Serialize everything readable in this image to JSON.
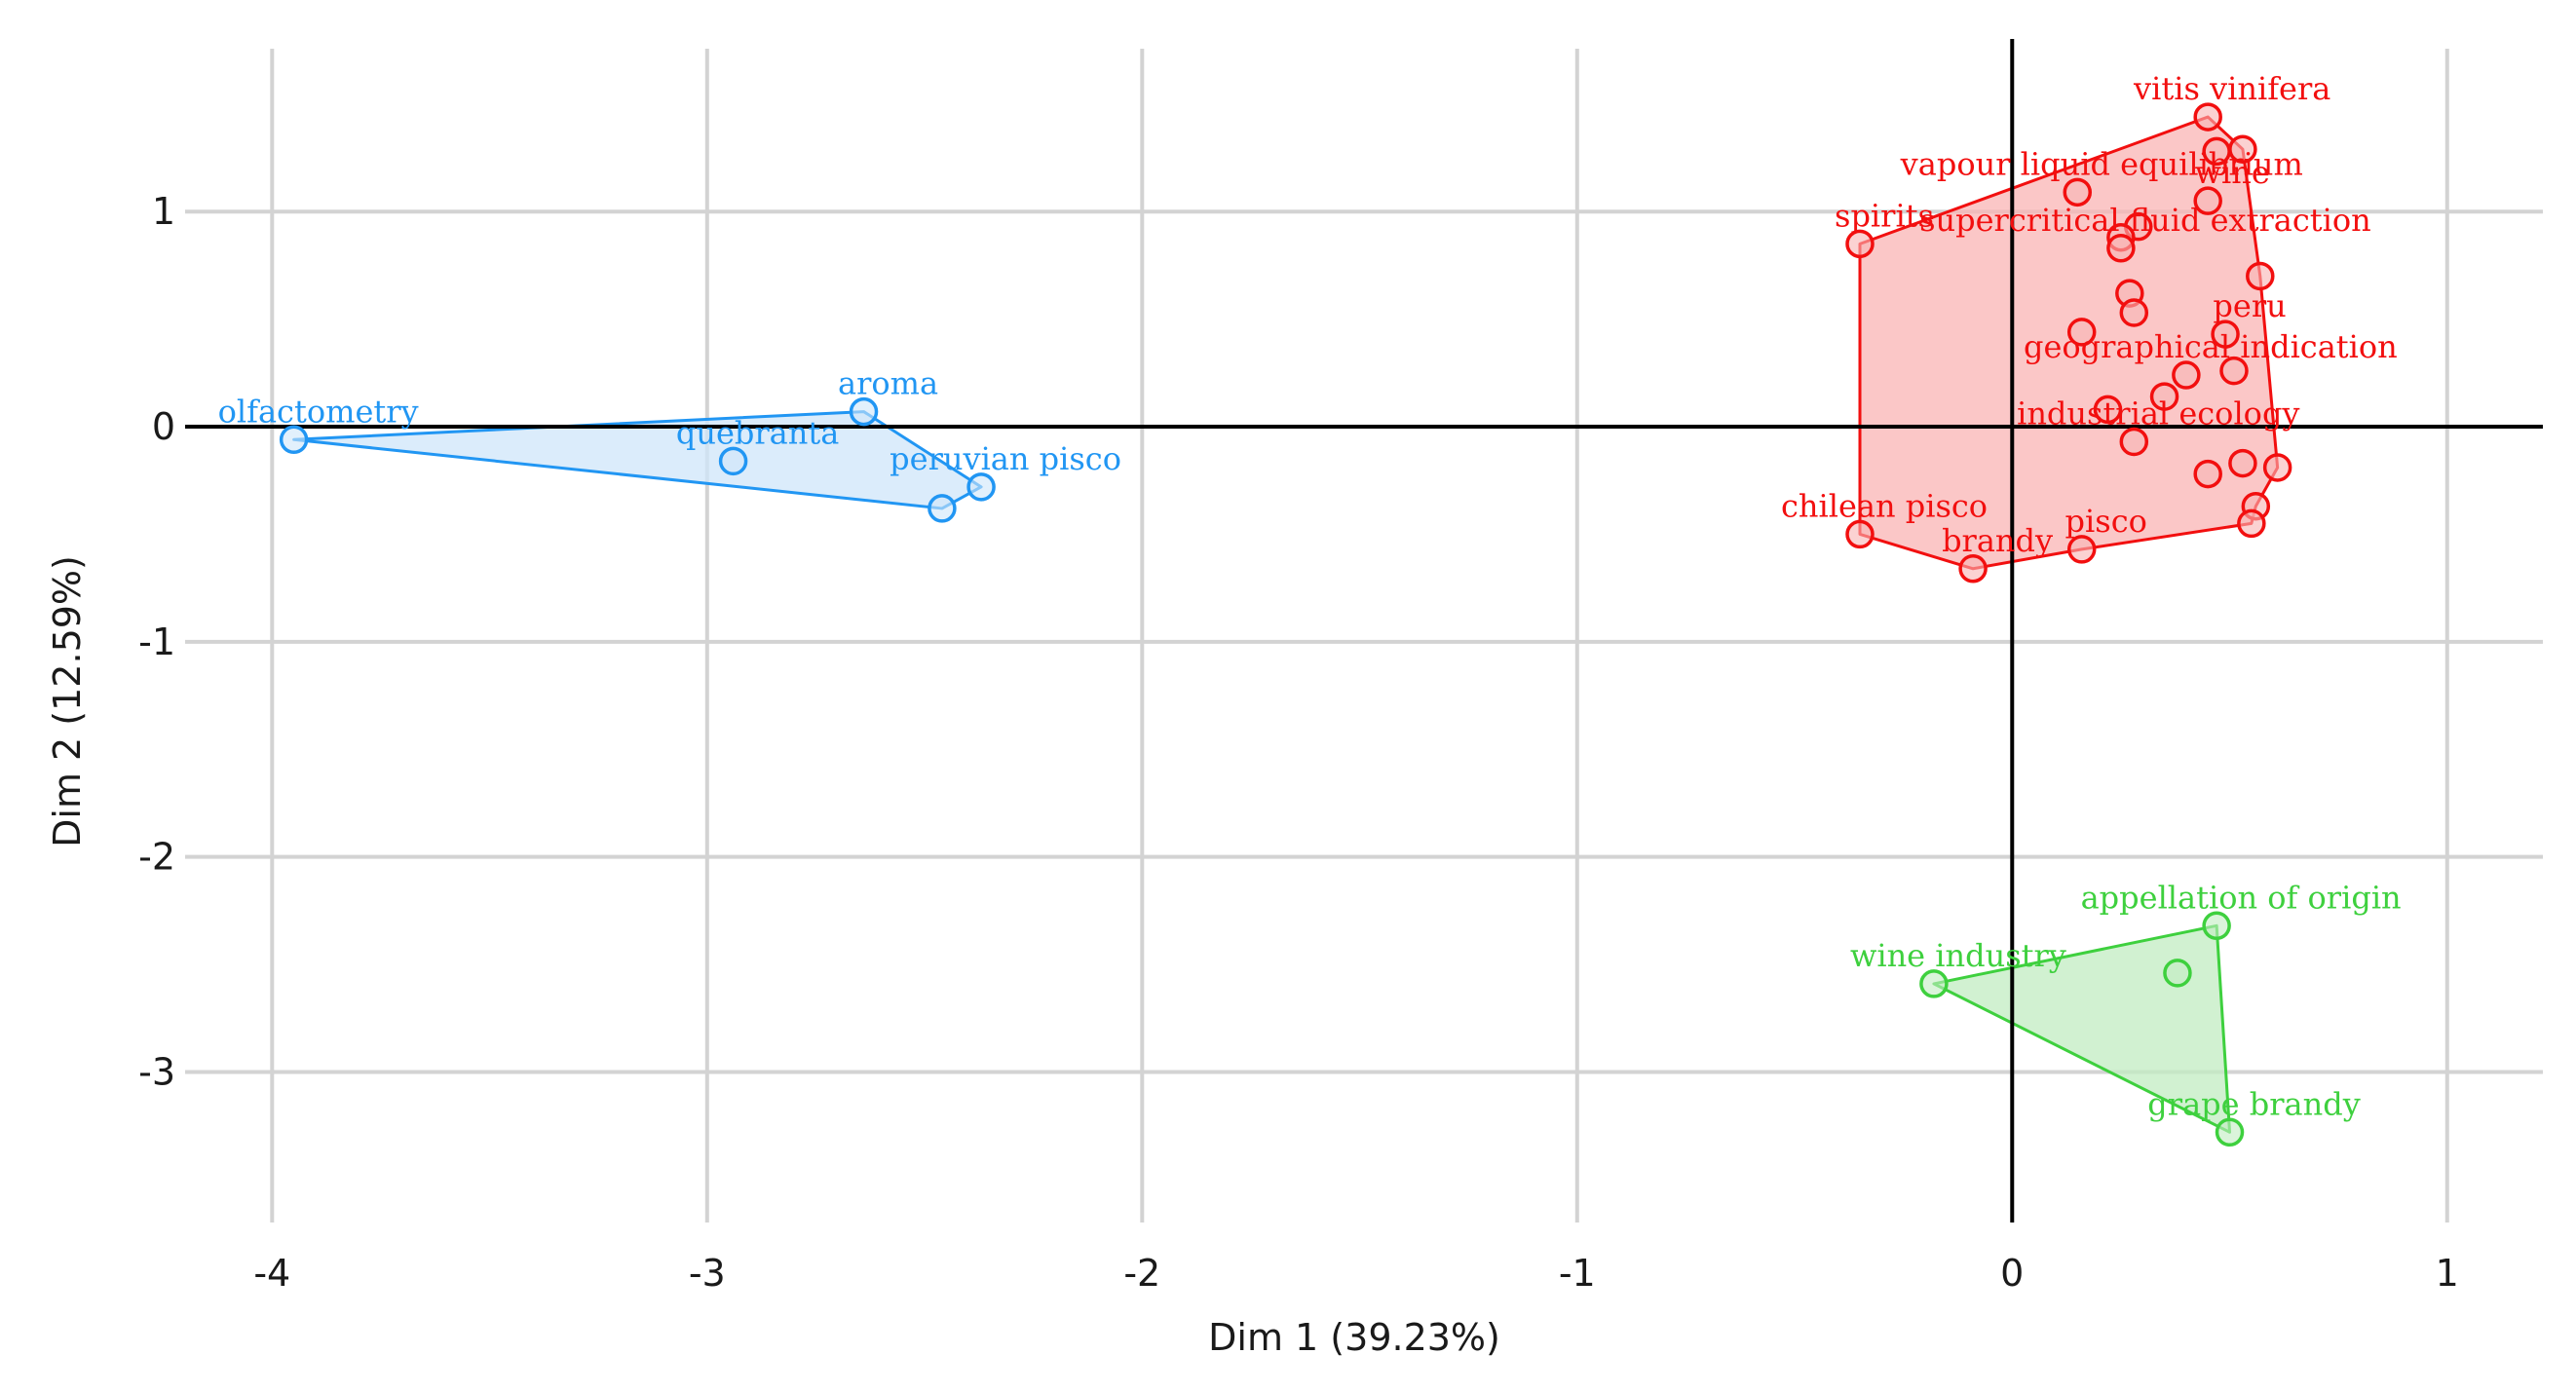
{
  "chart_data": {
    "type": "scatter",
    "xlabel": "Dim 1 (39.23%)",
    "ylabel": "Dim 2 (12.59%)",
    "xlim": [
      -4.2,
      1.22
    ],
    "ylim": [
      -3.7,
      1.78
    ],
    "xticks": [
      -4,
      -3,
      -2,
      -1,
      0,
      1
    ],
    "yticks": [
      1,
      0,
      -1,
      -2,
      -3
    ],
    "xtick_labels": [
      "-4",
      "-3",
      "-2",
      "-1",
      "0",
      "1"
    ],
    "ytick_labels": [
      "1",
      "0",
      "-1",
      "-2",
      "-3"
    ],
    "grid": true,
    "legend": "none",
    "clusters": [
      {
        "color": "#2196f3",
        "fill": "#cfe6fa",
        "hull": [
          [
            -3.95,
            -0.06
          ],
          [
            -2.64,
            0.07
          ],
          [
            -2.37,
            -0.28
          ],
          [
            -2.46,
            -0.38
          ]
        ],
        "points": [
          {
            "x": -3.95,
            "y": -0.06,
            "label": "olfactometry"
          },
          {
            "x": -2.64,
            "y": 0.07,
            "label": "aroma"
          },
          {
            "x": -2.94,
            "y": -0.16,
            "label": "quebranta"
          },
          {
            "x": -2.37,
            "y": -0.28,
            "label": "peruvian pisco"
          },
          {
            "x": -2.46,
            "y": -0.38,
            "label": ""
          }
        ]
      },
      {
        "color": "#f20f0f",
        "fill": "#f9b4b4",
        "hull": [
          [
            -0.35,
            0.85
          ],
          [
            0.45,
            1.44
          ],
          [
            0.53,
            1.29
          ],
          [
            0.57,
            0.7
          ],
          [
            0.61,
            -0.19
          ],
          [
            0.56,
            -0.37
          ],
          [
            0.55,
            -0.45
          ],
          [
            0.16,
            -0.57
          ],
          [
            -0.09,
            -0.66
          ],
          [
            -0.35,
            -0.5
          ]
        ],
        "points": [
          {
            "x": 0.45,
            "y": 1.44,
            "label": "vitis vinifera"
          },
          {
            "x": 0.47,
            "y": 1.28,
            "label": ""
          },
          {
            "x": 0.53,
            "y": 1.29,
            "label": ""
          },
          {
            "x": 0.15,
            "y": 1.09,
            "label": "vapour liquid equilibrium"
          },
          {
            "x": 0.45,
            "y": 1.05,
            "label": "wine"
          },
          {
            "x": -0.35,
            "y": 0.85,
            "label": "spirits"
          },
          {
            "x": 0.29,
            "y": 0.93,
            "label": ""
          },
          {
            "x": 0.25,
            "y": 0.88,
            "label": ""
          },
          {
            "x": 0.25,
            "y": 0.83,
            "label": "supercritical fluid extraction"
          },
          {
            "x": 0.57,
            "y": 0.7,
            "label": ""
          },
          {
            "x": 0.27,
            "y": 0.62,
            "label": ""
          },
          {
            "x": 0.28,
            "y": 0.53,
            "label": ""
          },
          {
            "x": 0.16,
            "y": 0.44,
            "label": ""
          },
          {
            "x": 0.49,
            "y": 0.43,
            "label": "peru"
          },
          {
            "x": 0.51,
            "y": 0.26,
            "label": ""
          },
          {
            "x": 0.4,
            "y": 0.24,
            "label": "geographical indication"
          },
          {
            "x": 0.35,
            "y": 0.14,
            "label": ""
          },
          {
            "x": 0.22,
            "y": 0.08,
            "label": ""
          },
          {
            "x": 0.28,
            "y": -0.07,
            "label": "industrial ecology"
          },
          {
            "x": 0.61,
            "y": -0.19,
            "label": ""
          },
          {
            "x": 0.53,
            "y": -0.17,
            "label": ""
          },
          {
            "x": 0.45,
            "y": -0.22,
            "label": ""
          },
          {
            "x": 0.56,
            "y": -0.37,
            "label": ""
          },
          {
            "x": 0.55,
            "y": -0.45,
            "label": ""
          },
          {
            "x": -0.35,
            "y": -0.5,
            "label": "chilean pisco"
          },
          {
            "x": 0.16,
            "y": -0.57,
            "label": "pisco"
          },
          {
            "x": -0.09,
            "y": -0.66,
            "label": "brandy"
          }
        ]
      },
      {
        "color": "#3ed03e",
        "fill": "#c2ecc2",
        "hull": [
          [
            -0.18,
            -2.59
          ],
          [
            0.47,
            -2.32
          ],
          [
            0.5,
            -3.28
          ]
        ],
        "points": [
          {
            "x": -0.18,
            "y": -2.59,
            "label": "wine industry"
          },
          {
            "x": 0.47,
            "y": -2.32,
            "label": "appellation of origin"
          },
          {
            "x": 0.38,
            "y": -2.54,
            "label": ""
          },
          {
            "x": 0.5,
            "y": -3.28,
            "label": "grape brandy"
          }
        ]
      }
    ]
  }
}
